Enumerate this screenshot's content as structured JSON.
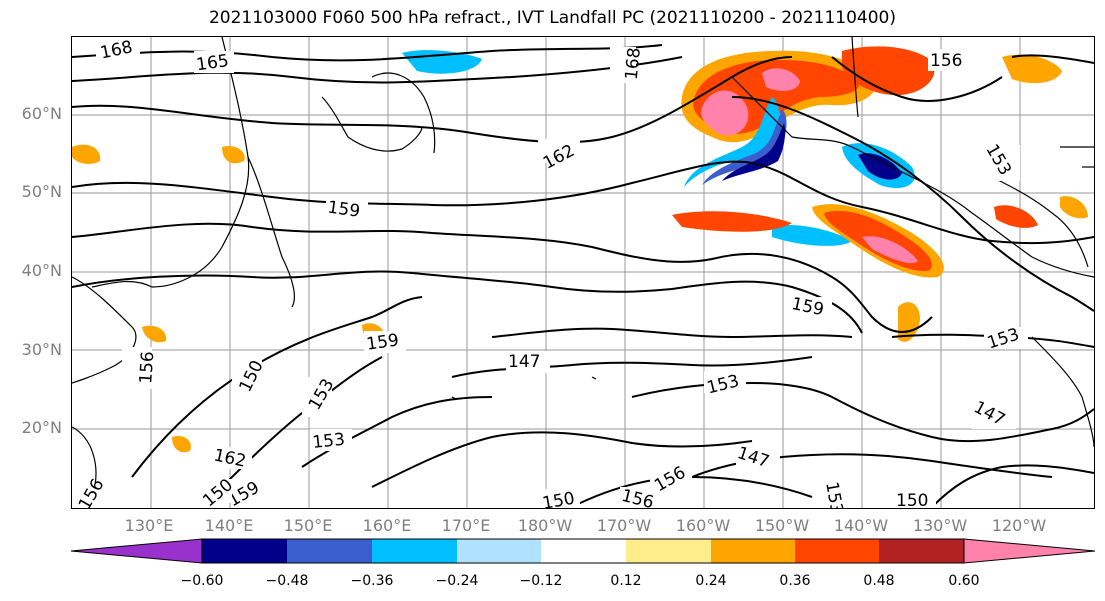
{
  "title": "2021103000 F060 500 hPa refract., IVT Landfall PC (2021110200 - 2021110400)",
  "lat_labels": [
    "60°N",
    "50°N",
    "40°N",
    "30°N",
    "20°N"
  ],
  "lon_labels": [
    "130°E",
    "140°E",
    "150°E",
    "160°E",
    "170°E",
    "180°W",
    "170°W",
    "160°W",
    "150°W",
    "140°W",
    "130°W",
    "120°W"
  ],
  "contour_labels": [
    "168",
    "165",
    "168",
    "156",
    "162",
    "159",
    "153",
    "159",
    "159",
    "150",
    "147",
    "153",
    "153",
    "153",
    "153",
    "147",
    "147",
    "156",
    "162",
    "159",
    "156",
    "150",
    "156",
    "150",
    "150",
    "153",
    "156"
  ],
  "colorbar": {
    "tick_labels": [
      "−0.60",
      "−0.48",
      "−0.36",
      "−0.24",
      "−0.12",
      "0.12",
      "0.24",
      "0.36",
      "0.48",
      "0.60"
    ],
    "levels": [
      -0.6,
      -0.48,
      -0.36,
      -0.24,
      -0.12,
      0.12,
      0.24,
      0.36,
      0.48,
      0.6
    ],
    "colors": [
      "#9932cc",
      "#00008b",
      "#3a5fcd",
      "#00bfff",
      "#b0e2ff",
      "#ffffff",
      "#ffec8b",
      "#ffa500",
      "#ff4500",
      "#b22222",
      "#ff82ab"
    ]
  },
  "colors": {
    "contour": "#000000",
    "grid": "#9a9a9a",
    "axis_label": "#7f7f7f"
  }
}
